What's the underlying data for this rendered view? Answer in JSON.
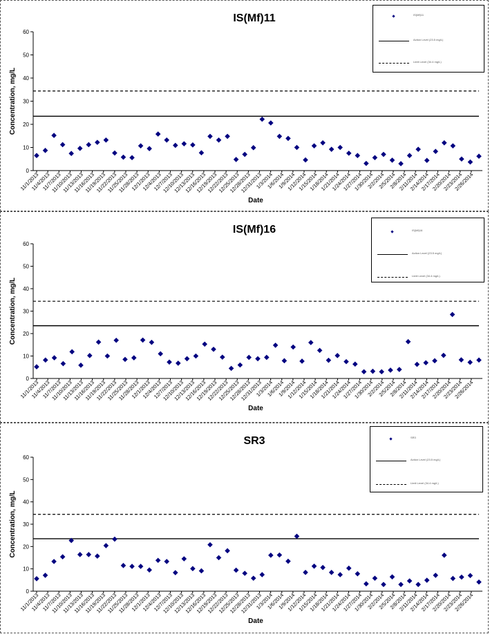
{
  "chart_data": [
    {
      "type": "scatter",
      "title": "IS(Mf)11",
      "xlabel": "Date",
      "ylabel": "Concentration, mg/L",
      "ylim": [
        0,
        60
      ],
      "yticks": [
        0,
        10,
        20,
        30,
        40,
        50,
        60
      ],
      "grid": false,
      "legend_position": "top-right",
      "x_ticks": [
        "11/1/2013",
        "11/4/2013",
        "11/7/2013",
        "11/10/2013",
        "11/13/2013",
        "11/16/2013",
        "11/19/2013",
        "11/22/2013",
        "11/25/2013",
        "11/28/2013",
        "12/1/2013",
        "12/4/2013",
        "12/7/2013",
        "12/10/2013",
        "12/13/2013",
        "12/16/2013",
        "12/19/2013",
        "12/22/2013",
        "12/25/2013",
        "12/28/2013",
        "12/31/2013",
        "1/3/2014",
        "1/6/2014",
        "1/9/2014",
        "1/12/2014",
        "1/15/2014",
        "1/18/2014",
        "1/21/2014",
        "1/24/2014",
        "1/27/2014",
        "1/30/2014",
        "2/2/2014",
        "2/5/2014",
        "2/8/2014",
        "2/11/2014",
        "2/14/2014",
        "2/17/2014",
        "2/20/2014",
        "2/23/2014",
        "2/26/2014"
      ],
      "series": [
        {
          "name": "IS(Mf)11",
          "values": [
            6.5,
            8.7,
            15.2,
            11.2,
            7.4,
            9.6,
            11.2,
            12.2,
            13.2,
            7.6,
            5.8,
            5.6,
            10.7,
            9.5,
            15.8,
            13.2,
            10.9,
            11.6,
            11.1,
            7.7,
            14.8,
            13.2,
            14.8,
            4.8,
            7.0,
            9.9,
            22.2,
            20.6,
            14.8,
            13.9,
            10.0,
            4.6,
            10.7,
            12.0,
            9.2,
            10.0,
            7.5,
            6.5,
            3.1,
            5.6,
            7.0,
            4.5,
            3.0,
            6.5,
            9.2,
            4.4,
            8.3,
            12.0,
            10.7,
            5.0,
            3.7,
            6.2
          ]
        },
        {
          "name": "Action Level (23.5 mg/L)",
          "constant": 23.5
        },
        {
          "name": "Limit Level (34.4 mg/L)",
          "constant": 34.4
        }
      ]
    },
    {
      "type": "scatter",
      "title": "IS(Mf)16",
      "xlabel": "Date",
      "ylabel": "Concentration, mg/L",
      "ylim": [
        0,
        60
      ],
      "yticks": [
        0,
        10,
        20,
        30,
        40,
        50,
        60
      ],
      "grid": false,
      "legend_position": "top-right",
      "x_ticks": [
        "11/1/2013",
        "11/4/2013",
        "11/7/2013",
        "11/10/2013",
        "11/13/2013",
        "11/16/2013",
        "11/19/2013",
        "11/22/2013",
        "11/25/2013",
        "11/28/2013",
        "12/1/2013",
        "12/4/2013",
        "12/7/2013",
        "12/10/2013",
        "12/13/2013",
        "12/16/2013",
        "12/19/2013",
        "12/22/2013",
        "12/25/2013",
        "12/28/2013",
        "12/31/2013",
        "1/3/2014",
        "1/6/2014",
        "1/9/2014",
        "1/12/2014",
        "1/15/2014",
        "1/18/2014",
        "1/21/2014",
        "1/24/2014",
        "1/27/2014",
        "1/30/2014",
        "2/2/2014",
        "2/5/2014",
        "2/8/2014",
        "2/11/2014",
        "2/14/2014",
        "2/17/2014",
        "2/20/2014",
        "2/23/2014",
        "2/26/2014"
      ],
      "series": [
        {
          "name": "IS(Mf)16",
          "values": [
            5.2,
            8.2,
            9.2,
            6.6,
            11.9,
            5.9,
            10.2,
            16.2,
            10.0,
            17.0,
            8.5,
            9.2,
            17.1,
            16.1,
            11.0,
            7.3,
            6.8,
            8.8,
            10.0,
            15.3,
            13.0,
            9.5,
            4.5,
            6.0,
            9.4,
            8.8,
            9.4,
            14.8,
            7.9,
            14.0,
            7.7,
            16.0,
            12.5,
            8.1,
            10.2,
            7.5,
            6.4,
            3.0,
            3.2,
            3.0,
            3.7,
            4.0,
            16.4,
            6.3,
            7.0,
            7.9,
            10.3,
            28.5,
            8.3,
            7.2,
            8.2
          ]
        },
        {
          "name": "Action Level (23.5 mg/L)",
          "constant": 23.5
        },
        {
          "name": "Limit Level (34.4 mg/L)",
          "constant": 34.4
        }
      ]
    },
    {
      "type": "scatter",
      "title": "SR3",
      "xlabel": "Date",
      "ylabel": "Concentration, mg/L",
      "ylim": [
        0,
        60
      ],
      "yticks": [
        0,
        10,
        20,
        30,
        40,
        50,
        60
      ],
      "grid": false,
      "legend_position": "top-right",
      "x_ticks": [
        "11/1/2013",
        "11/4/2013",
        "11/7/2013",
        "11/10/2013",
        "11/13/2013",
        "11/16/2013",
        "11/19/2013",
        "11/22/2013",
        "11/25/2013",
        "11/28/2013",
        "12/1/2013",
        "12/4/2013",
        "12/7/2013",
        "12/10/2013",
        "12/13/2013",
        "12/16/2013",
        "12/19/2013",
        "12/22/2013",
        "12/25/2013",
        "12/28/2013",
        "12/31/2013",
        "1/3/2014",
        "1/6/2014",
        "1/9/2014",
        "1/12/2014",
        "1/15/2014",
        "1/18/2014",
        "1/21/2014",
        "1/24/2014",
        "1/27/2014",
        "1/30/2014",
        "2/2/2014",
        "2/5/2014",
        "2/8/2014",
        "2/11/2014",
        "2/14/2014",
        "2/17/2014",
        "2/20/2014",
        "2/23/2014",
        "2/26/2014"
      ],
      "series": [
        {
          "name": "SR3",
          "values": [
            5.6,
            7.1,
            13.3,
            15.4,
            22.7,
            16.4,
            16.4,
            15.7,
            20.4,
            23.3,
            11.5,
            11.1,
            11.1,
            9.5,
            13.8,
            13.3,
            8.3,
            14.5,
            10.1,
            9.1,
            20.8,
            15.0,
            18.1,
            9.4,
            8.0,
            5.8,
            7.4,
            16.1,
            16.2,
            13.4,
            24.6,
            8.4,
            11.2,
            10.6,
            8.4,
            7.4,
            10.3,
            7.8,
            3.3,
            5.8,
            3.0,
            6.4,
            3.0,
            4.6,
            3.0,
            4.9,
            7.1,
            16.1,
            5.7,
            6.3,
            7.0,
            4.1
          ]
        },
        {
          "name": "Action Level (23.5 mg/L)",
          "constant": 23.5
        },
        {
          "name": "Limit Level (34.4 mg/L)",
          "constant": 34.4
        }
      ]
    }
  ],
  "colors": {
    "marker": "#000080",
    "line": "#000000",
    "frame": "#555555"
  }
}
